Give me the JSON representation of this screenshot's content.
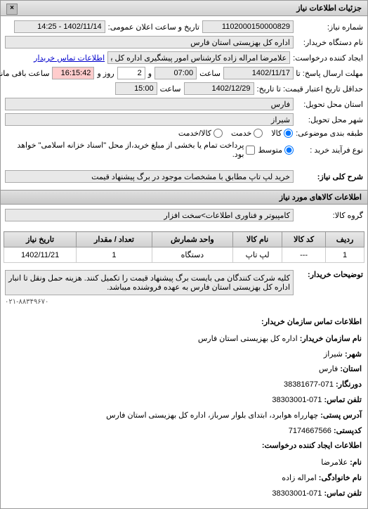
{
  "header": {
    "title": "جزئیات اطلاعات نیاز",
    "close": "×"
  },
  "form": {
    "needNumber": {
      "label": "شماره نیاز:",
      "value": "1102000150000829"
    },
    "announceDate": {
      "label": "تاریخ و ساعت اعلان عمومی:",
      "value": "1402/11/14 - 14:25"
    },
    "buyerOrg": {
      "label": "نام دستگاه خریدار:",
      "value": "اداره کل بهزیستی استان فارس"
    },
    "requestCreator": {
      "label": "ایجاد کننده درخواست:",
      "value": "علامرضا امراله زاده کارشناس امور پیشگیری اداره کل بهزیستی استان فارس"
    },
    "buyerContactBtn": "اطلاعات تماس خریدار",
    "responseDeadline": {
      "label": "مهلت ارسال پاسخ: تا تاریخ:",
      "date": "1402/11/17",
      "timeLabel": "ساعت",
      "time": "07:00",
      "andLabel": "و",
      "days": "2",
      "remainingLabel": "روز و",
      "remaining": "16:15:42",
      "remainingText": "ساعت باقی مانده"
    },
    "validityDeadline": {
      "label": "حداقل تاریخ اعتبار قیمت: تا تاریخ:",
      "date": "1402/12/29",
      "timeLabel": "ساعت",
      "time": "15:00"
    },
    "deliveryProvince": {
      "label": "استان محل تحویل:",
      "value": "فارس"
    },
    "deliveryCity": {
      "label": "شهر محل تحویل:",
      "value": "شیراز"
    },
    "packageType": {
      "label": "طبقه بندی موضوعی:",
      "all": "کالا",
      "partial": "خدمت",
      "split": "کالا/خدمت"
    },
    "purchaseType": {
      "label": "نوع فرآیند خرید :",
      "medium": "متوسط",
      "note": "پرداخت تمام یا بخشی از مبلغ خرید،از محل \"اسناد خزانه اسلامی\" خواهد بود."
    }
  },
  "generalDesc": {
    "header": "شرح کلی نیاز:",
    "value": "خرید لپ تاپ مطابق با مشخصات موجود در برگ پیشنهاد قیمت"
  },
  "goodsInfo": {
    "header": "اطلاعات کالاهای مورد نیاز",
    "groupLabel": "گروه کالا:",
    "groupValue": "کامپیوتر و فناوری اطلاعات>سخت افزار"
  },
  "table": {
    "columns": [
      "ردیف",
      "کد کالا",
      "نام کالا",
      "واحد شمارش",
      "تعداد / مقدار",
      "تاریخ نیاز"
    ],
    "rows": [
      [
        "1",
        "---",
        "لپ تاپ",
        "دستگاه",
        "1",
        "1402/11/21"
      ]
    ]
  },
  "buyerNotes": {
    "label": "توضیحات خریدار:",
    "value": "کلیه شرکت کنندگان می بایست برگ پیشنهاد قیمت را تکمیل کنند. هزینه حمل ونقل تا انبار اداره کل بهزیستی استان فارس به عهده فروشنده میباشد."
  },
  "contactInfo": {
    "header1": "اطلاعات تماس سازمان خریدار:",
    "orgName": {
      "label": "نام سازمان خریدار:",
      "value": "اداره کل بهزیستی استان فارس"
    },
    "city": {
      "label": "شهر:",
      "value": "شیراز"
    },
    "province": {
      "label": "استان:",
      "value": "فارس"
    },
    "fax": {
      "label": "دورنگار:",
      "value": "071-38381677"
    },
    "phone": {
      "label": "تلفن تماس:",
      "value": "071-38303001"
    },
    "address": {
      "label": "آدرس پستی:",
      "value": "چهارراه هوابرد، ابتدای بلوار سرباز، اداره کل بهزیستی استان فارس"
    },
    "postalCode": {
      "label": "کدپستی:",
      "value": "7174667566"
    },
    "header2": "اطلاعات ایجاد کننده درخواست:",
    "creatorName": {
      "label": "نام:",
      "value": "علامرضا"
    },
    "creatorFamily": {
      "label": "نام خانوادگی:",
      "value": "امراله زاده"
    },
    "creatorPhone": {
      "label": "تلفن تماس:",
      "value": "071-38303001"
    }
  },
  "phoneFooter": "۰۲۱-۸۸۳۴۹۶۷۰"
}
